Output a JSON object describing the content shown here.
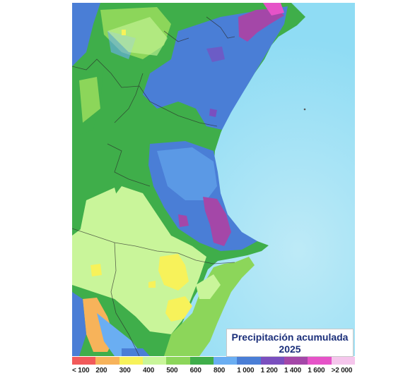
{
  "title": {
    "line1": "Precipitación acumulada",
    "line2": "2025"
  },
  "colors": {
    "sea": "#8fdcf4",
    "sea_light": "#bdeaf7"
  },
  "legend": [
    {
      "label": "< 100",
      "color": "#f25a5a"
    },
    {
      "label": "200",
      "color": "#f7b35a"
    },
    {
      "label": "300",
      "color": "#f7f25a"
    },
    {
      "label": "400",
      "color": "#c9f59a"
    },
    {
      "label": "500",
      "color": "#8cd65a"
    },
    {
      "label": "600",
      "color": "#3fae4a"
    },
    {
      "label": "800",
      "color": "#6aaef2"
    },
    {
      "label": "1 000",
      "color": "#4a7ed6"
    },
    {
      "label": "1 200",
      "color": "#7a4fbf"
    },
    {
      "label": "1 400",
      "color": "#a447a8"
    },
    {
      "label": "1 600",
      "color": "#e653c8"
    },
    {
      "label": ">2 000",
      "color": "#f5c6ec"
    }
  ]
}
